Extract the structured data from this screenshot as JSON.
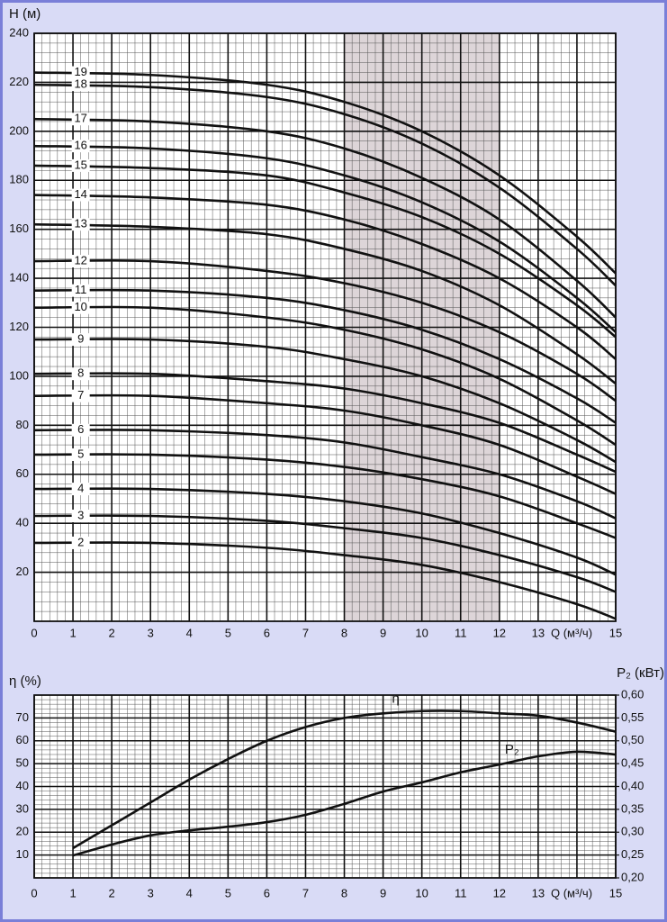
{
  "chart_data": [
    {
      "type": "line",
      "y_label": "H (м)",
      "x_label": "Q (м³/ч)",
      "color": "#111111",
      "x": [
        0,
        3,
        6,
        8,
        10,
        12,
        14,
        15
      ],
      "series": [
        {
          "name": "2",
          "values": [
            32,
            32,
            30,
            27,
            23,
            16,
            7,
            1
          ]
        },
        {
          "name": "3",
          "values": [
            43,
            43,
            41,
            38,
            34,
            27,
            18,
            12
          ]
        },
        {
          "name": "4",
          "values": [
            54,
            54,
            52,
            49,
            44,
            36,
            26,
            19
          ]
        },
        {
          "name": "5",
          "values": [
            68,
            68,
            66,
            63,
            58,
            51,
            40,
            34
          ]
        },
        {
          "name": "6",
          "values": [
            78,
            78,
            76,
            73,
            67,
            60,
            49,
            42
          ]
        },
        {
          "name": "7",
          "values": [
            92,
            92,
            89,
            86,
            80,
            72,
            59,
            52
          ]
        },
        {
          "name": "8",
          "values": [
            101,
            101,
            98,
            95,
            89,
            81,
            68,
            61
          ]
        },
        {
          "name": "9",
          "values": [
            115,
            115,
            112,
            107,
            100,
            89,
            74,
            65
          ]
        },
        {
          "name": "10",
          "values": [
            128,
            128,
            124,
            119,
            111,
            99,
            82,
            72
          ]
        },
        {
          "name": "11",
          "values": [
            135,
            135,
            132,
            127,
            119,
            107,
            91,
            81
          ]
        },
        {
          "name": "12",
          "values": [
            147,
            147,
            143,
            138,
            130,
            118,
            101,
            90
          ]
        },
        {
          "name": "13",
          "values": [
            162,
            161,
            158,
            152,
            143,
            129,
            109,
            97
          ]
        },
        {
          "name": "14",
          "values": [
            174,
            173,
            170,
            164,
            154,
            140,
            120,
            107
          ]
        },
        {
          "name": "15",
          "values": [
            186,
            185,
            182,
            175,
            165,
            150,
            129,
            116
          ]
        },
        {
          "name": "16",
          "values": [
            194,
            193,
            189,
            182,
            171,
            155,
            132,
            118
          ]
        },
        {
          "name": "17",
          "values": [
            205,
            204,
            200,
            193,
            181,
            164,
            139,
            124
          ]
        },
        {
          "name": "18",
          "values": [
            219,
            218,
            214,
            207,
            195,
            177,
            152,
            137
          ]
        },
        {
          "name": "19",
          "values": [
            224,
            223,
            219,
            212,
            200,
            182,
            157,
            142
          ]
        }
      ],
      "xlim": [
        0,
        15
      ],
      "ylim": [
        0,
        240
      ],
      "xticks": [
        0,
        1,
        2,
        3,
        4,
        5,
        6,
        7,
        8,
        9,
        10,
        11,
        12,
        13,
        {
          "value": 14,
          "label": null
        },
        15
      ],
      "yticks": [
        20,
        40,
        60,
        80,
        100,
        120,
        140,
        160,
        180,
        200,
        220,
        240
      ],
      "grid": true,
      "minor_grid": true,
      "highlight_x": [
        8,
        12
      ],
      "highlight_color": "#ddd5d8"
    },
    {
      "type": "line",
      "y_label": "η (%)",
      "y2_label": "P₂ (кВт)",
      "x_label": "Q (м³/ч)",
      "color": "#111111",
      "x": [
        1,
        2,
        3,
        4,
        5,
        6,
        7,
        8,
        9,
        10,
        11,
        12,
        13,
        14,
        15
      ],
      "series": [
        {
          "name": "η",
          "values": [
            13,
            23,
            33,
            43,
            52,
            60,
            66,
            70,
            72,
            73,
            73,
            72,
            71,
            68,
            64
          ]
        },
        {
          "name": "P₂",
          "axis": "y2",
          "values": [
            0.249,
            0.273,
            0.293,
            0.304,
            0.312,
            0.322,
            0.338,
            0.362,
            0.389,
            0.409,
            0.431,
            0.448,
            0.466,
            0.476,
            0.47
          ]
        }
      ],
      "xlim": [
        0,
        15
      ],
      "ylim": [
        0,
        80
      ],
      "y2lim": [
        0.2,
        0.6
      ],
      "xticks": [
        0,
        1,
        2,
        3,
        4,
        5,
        6,
        7,
        8,
        9,
        10,
        11,
        12,
        13,
        {
          "value": 14,
          "label": null
        },
        15
      ],
      "yticks": [
        10,
        20,
        30,
        40,
        50,
        60,
        70
      ],
      "y2ticks": [
        {
          "value": 0.2,
          "label": "0,20"
        },
        {
          "value": 0.25,
          "label": "0,25"
        },
        {
          "value": 0.3,
          "label": "0,30"
        },
        {
          "value": 0.35,
          "label": "0,35"
        },
        {
          "value": 0.4,
          "label": "0,40"
        },
        {
          "value": 0.45,
          "label": "0,45"
        },
        {
          "value": 0.5,
          "label": "0,50"
        },
        {
          "value": 0.55,
          "label": "0,55"
        },
        {
          "value": 0.6,
          "label": "0,60"
        }
      ],
      "grid": true,
      "minor_grid": true
    }
  ]
}
